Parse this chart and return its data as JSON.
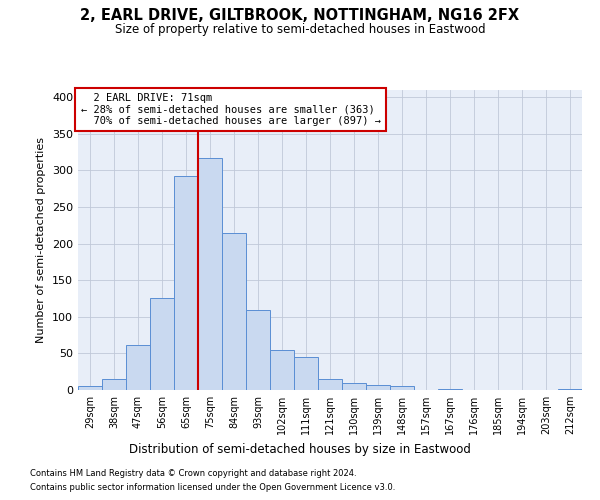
{
  "title": "2, EARL DRIVE, GILTBROOK, NOTTINGHAM, NG16 2FX",
  "subtitle": "Size of property relative to semi-detached houses in Eastwood",
  "xlabel": "Distribution of semi-detached houses by size in Eastwood",
  "ylabel": "Number of semi-detached properties",
  "footnote1": "Contains HM Land Registry data © Crown copyright and database right 2024.",
  "footnote2": "Contains public sector information licensed under the Open Government Licence v3.0.",
  "categories": [
    "29sqm",
    "38sqm",
    "47sqm",
    "56sqm",
    "65sqm",
    "75sqm",
    "84sqm",
    "93sqm",
    "102sqm",
    "111sqm",
    "121sqm",
    "130sqm",
    "139sqm",
    "148sqm",
    "157sqm",
    "167sqm",
    "176sqm",
    "185sqm",
    "194sqm",
    "203sqm",
    "212sqm"
  ],
  "bar_heights": [
    5,
    15,
    62,
    126,
    293,
    317,
    215,
    110,
    54,
    45,
    15,
    10,
    7,
    6,
    0,
    2,
    0,
    0,
    0,
    0,
    2
  ],
  "bar_color": "#c9d9f0",
  "bar_edge_color": "#5a8ed4",
  "property_label": "2 EARL DRIVE: 71sqm",
  "pct_smaller": 28,
  "pct_larger": 70,
  "count_smaller": 363,
  "count_larger": 897,
  "vline_x": 4.5,
  "vline_color": "#cc0000",
  "ann_box_edge_color": "#cc0000",
  "ylim": [
    0,
    410
  ],
  "yticks": [
    0,
    50,
    100,
    150,
    200,
    250,
    300,
    350,
    400
  ],
  "grid_color": "#c0c8d8",
  "background_color": "#e8eef8"
}
